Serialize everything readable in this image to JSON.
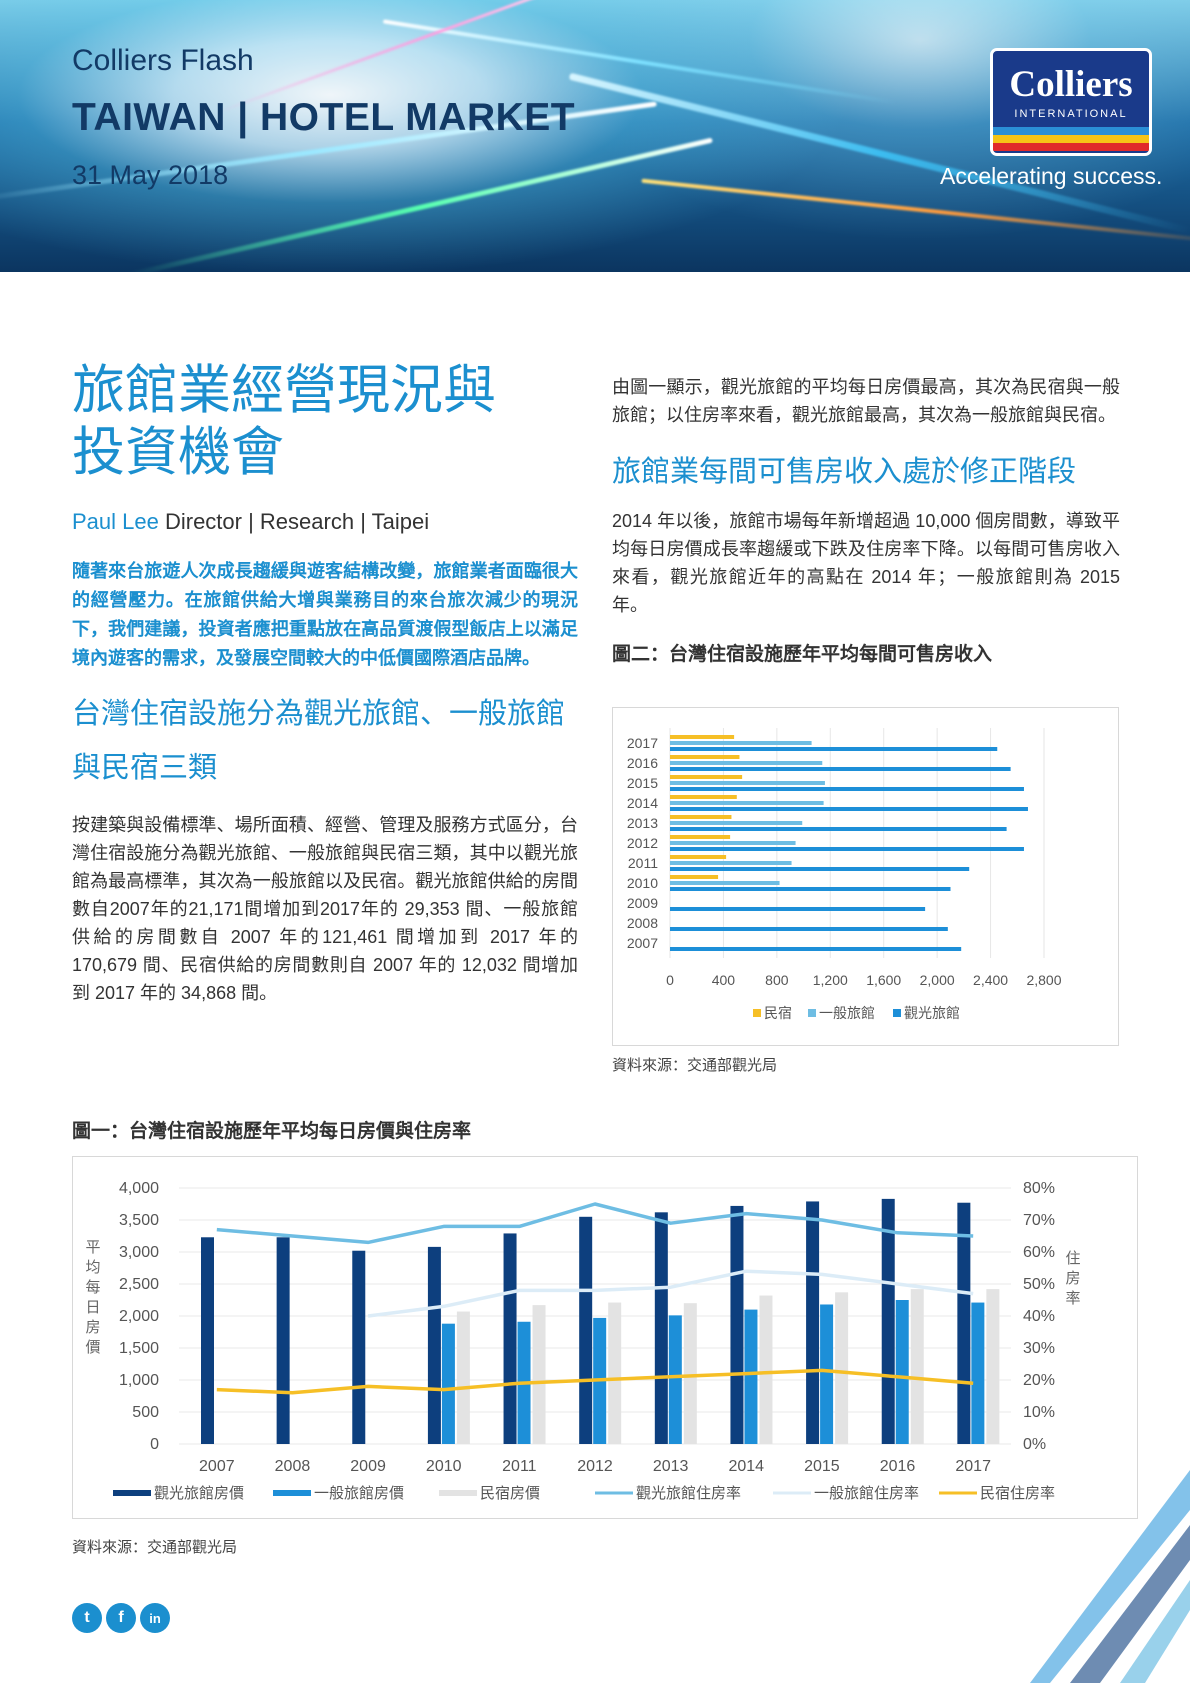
{
  "header": {
    "series": "Colliers Flash",
    "market": "TAIWAN | HOTEL MARKET",
    "date": "31 May 2018",
    "logo_name": "Colliers",
    "logo_sub": "INTERNATIONAL",
    "tagline": "Accelerating success."
  },
  "colors": {
    "accent": "#1b8fcf",
    "navy": "#0d3f7e",
    "mid_blue": "#1d8fd8",
    "light_gray": "#e3e3e3",
    "occupancy_tourist": "#6ebde3",
    "occupancy_general": "#dcecf7",
    "yellow": "#f6bf26"
  },
  "article": {
    "title_line1": "旅館業經營現況與",
    "title_line2": "投資機會",
    "author": "Paul Lee",
    "author_role": " Director | Research | Taipei",
    "lead": "隨著來台旅遊人次成長趨緩與遊客結構改變，旅館業者面臨很大的經營壓力。在旅館供給大增與業務目的來台旅次減少的現況下，我們建議，投資者應把重點放在高品質渡假型飯店上以滿足境內遊客的需求，及發展空間較大的中低價國際酒店品牌。",
    "section1_heading": "台灣住宿設施分為觀光旅館、一般旅館與民宿三類",
    "section1_para": "按建築與設備標準、場所面積、經營、管理及服務方式區分，台灣住宿設施分為觀光旅館、一般旅館與民宿三類，其中以觀光旅館為最高標準，其次為一般旅館以及民宿。觀光旅館供給的房間數自2007年的21,171間增加到2017年的 29,353 間、一般旅館供給的房間數自 2007 年的121,461 間增加到 2017 年的 170,679 間、民宿供給的房間數則自 2007 年的 12,032 間增加到 2017 年的 34,868 間。",
    "right_para1": "由圖一顯示，觀光旅館的平均每日房價最高，其次為民宿與一般旅館；以住房率來看，觀光旅館最高，其次為一般旅館與民宿。",
    "section2_heading": "旅館業每間可售房收入處於修正階段",
    "right_para2": "2014 年以後，旅館市場每年新增超過 10,000 個房間數，導致平均每日房價成長率趨緩或下跌及住房率下降。以每間可售房收入來看，觀光旅館近年的高點在 2014 年；一般旅館則為 2015 年。",
    "fig2_title": "圖二：台灣住宿設施歷年平均每間可售房收入",
    "fig2_source": "資料來源：交通部觀光局",
    "fig1_title": "圖一：台灣住宿設施歷年平均每日房價與住房率",
    "fig1_source": "資料來源：交通部觀光局"
  },
  "social": {
    "twitter_glyph": "t",
    "facebook_glyph": "f",
    "linkedin_glyph": "in"
  },
  "chart_data": [
    {
      "type": "bar",
      "orientation": "horizontal",
      "categories": [
        "2017",
        "2016",
        "2015",
        "2014",
        "2013",
        "2012",
        "2011",
        "2010",
        "2009",
        "2008",
        "2007"
      ],
      "series": [
        {
          "name": "民宿",
          "color": "#f6bf26",
          "values": [
            480,
            520,
            540,
            500,
            460,
            450,
            420,
            360,
            null,
            null,
            null
          ]
        },
        {
          "name": "一般旅館",
          "color": "#6ebde3",
          "values": [
            1060,
            1140,
            1160,
            1150,
            990,
            940,
            910,
            820,
            null,
            null,
            null
          ]
        },
        {
          "name": "觀光旅館",
          "color": "#1d8fd8",
          "values": [
            2450,
            2550,
            2650,
            2680,
            2520,
            2650,
            2240,
            2100,
            1910,
            2080,
            2180
          ]
        }
      ],
      "xlim": [
        0,
        2800
      ],
      "xticks": [
        "0",
        "400",
        "800",
        "1,200",
        "1,600",
        "2,000",
        "2,400",
        "2,800"
      ],
      "legend": "bottom",
      "grid": "vertical"
    },
    {
      "type": "bar",
      "categories": [
        "2007",
        "2008",
        "2009",
        "2010",
        "2011",
        "2012",
        "2013",
        "2014",
        "2015",
        "2016",
        "2017"
      ],
      "ylabel": "平均每日房價",
      "y2label": "住房率",
      "ylim": [
        0,
        4000
      ],
      "y2lim": [
        0,
        80
      ],
      "yticks": [
        "4,000",
        "3,500",
        "3,000",
        "2,500",
        "2,000",
        "1,500",
        "1,000",
        "500",
        "0"
      ],
      "y2ticks": [
        "80%",
        "70%",
        "60%",
        "50%",
        "40%",
        "30%",
        "20%",
        "10%",
        "0%"
      ],
      "bar_series": [
        {
          "name": "觀光旅館房價",
          "color": "#0d3f7e",
          "values": [
            3230,
            3230,
            3020,
            3080,
            3290,
            3550,
            3620,
            3720,
            3790,
            3830,
            3770
          ]
        },
        {
          "name": "一般旅館房價",
          "color": "#1d8fd8",
          "values": [
            null,
            null,
            null,
            1880,
            1910,
            1970,
            2010,
            2100,
            2180,
            2250,
            2210
          ]
        },
        {
          "name": "民宿房價",
          "color": "#e3e3e3",
          "values": [
            null,
            null,
            null,
            2070,
            2170,
            2210,
            2200,
            2320,
            2370,
            2420,
            2420
          ]
        }
      ],
      "line_series": [
        {
          "name": "觀光旅館住房率",
          "color": "#6ebde3",
          "values": [
            67,
            65,
            63,
            68,
            68,
            75,
            69,
            72,
            70,
            66,
            65
          ]
        },
        {
          "name": "一般旅館住房率",
          "color": "#dcecf7",
          "values": [
            null,
            null,
            40,
            43,
            48,
            48,
            49,
            54,
            53,
            50,
            47
          ]
        },
        {
          "name": "民宿住房率",
          "color": "#f6bf26",
          "values": [
            17,
            16,
            18,
            17,
            19,
            20,
            21,
            22,
            23,
            21,
            19
          ]
        }
      ],
      "legend": "bottom",
      "grid": "horizontal"
    }
  ]
}
